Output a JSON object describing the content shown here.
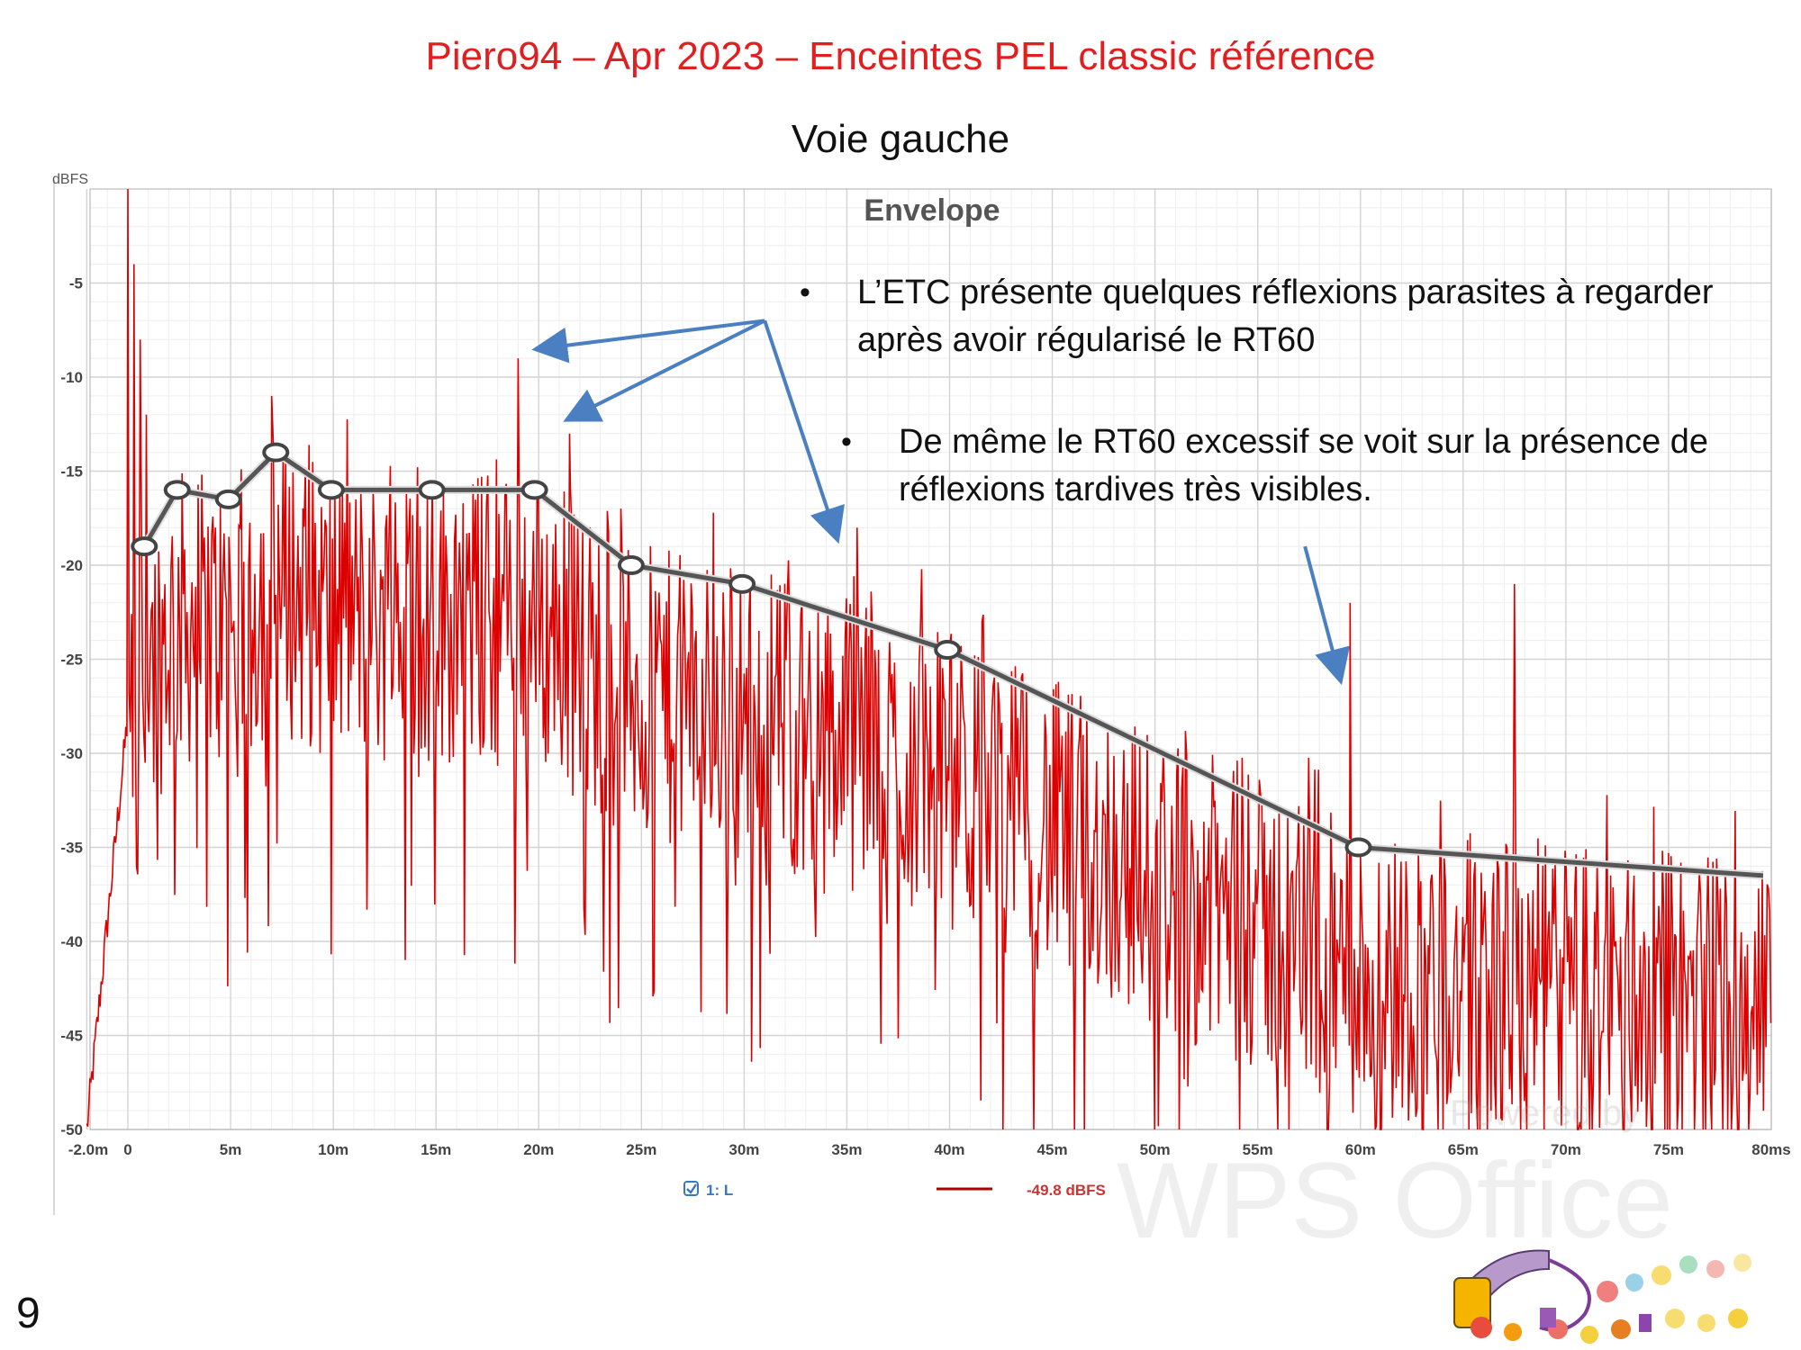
{
  "slide": {
    "title": "Piero94 – Apr 2023 – Enceintes PEL classic référence",
    "subtitle": "Voie gauche",
    "page_number": "9"
  },
  "notes": [
    {
      "bullet": "•",
      "lines": [
        "L’ETC présente quelques réflexions parasites à regarder",
        "après avoir régularisé le RT60"
      ]
    },
    {
      "bullet": "•",
      "lines": [
        "De même le RT60 excessif se voit sur la présence de",
        "réflexions tardives très visibles."
      ]
    }
  ],
  "colors": {
    "title": "#e02020",
    "etc_trace": "#dd0000",
    "envelope_line": "#555555",
    "arrows": "#4a7fc1",
    "grid": "#d4d4d4"
  },
  "chart_data": {
    "type": "line",
    "title": "Envelope",
    "ylabel": "dBFS",
    "xlabel": "",
    "xlim": [
      -2.0,
      80
    ],
    "ylim": [
      -50,
      0
    ],
    "x_ticks": [
      -2,
      0,
      5,
      10,
      15,
      20,
      25,
      30,
      35,
      40,
      45,
      50,
      55,
      60,
      65,
      70,
      75,
      80
    ],
    "x_tick_labels": [
      "-2.0m",
      "0",
      "5m",
      "10m",
      "15m",
      "20m",
      "25m",
      "30m",
      "35m",
      "40m",
      "45m",
      "50m",
      "55m",
      "60m",
      "65m",
      "70m",
      "75m",
      "80ms"
    ],
    "y_ticks": [
      -5,
      -10,
      -15,
      -20,
      -25,
      -30,
      -35,
      -40,
      -45,
      -50
    ],
    "y_tick_labels": [
      "-5",
      "-10",
      "-15",
      "-20",
      "-25",
      "-30",
      "-35",
      "-40",
      "-45",
      "-50"
    ],
    "grid": true,
    "legend": {
      "placement": "bottom-center",
      "checkbox_label": "1: L",
      "value_label": "-49.8 dBFS"
    },
    "series": [
      {
        "name": "1: L",
        "style": "dense-noise-trace",
        "peaks": [
          {
            "x": 0.0,
            "y": 0
          },
          {
            "x": 0.3,
            "y": -4
          },
          {
            "x": 0.6,
            "y": -8
          },
          {
            "x": 0.9,
            "y": -12
          },
          {
            "x": 7.0,
            "y": -11
          },
          {
            "x": 19.0,
            "y": -9
          },
          {
            "x": 21.5,
            "y": -13
          },
          {
            "x": 35.5,
            "y": -18
          },
          {
            "x": 59.5,
            "y": -22
          },
          {
            "x": 67.5,
            "y": -21
          }
        ]
      },
      {
        "name": "",
        "style": "envelope",
        "x": [
          0.8,
          2.4,
          4.9,
          7.2,
          9.9,
          14.8,
          19.8,
          24.5,
          29.9,
          39.9,
          59.9,
          79.6
        ],
        "y": [
          -19,
          -16,
          -16.5,
          -14,
          -16,
          -16,
          -16,
          -20,
          -21,
          -24.5,
          -35,
          -36.5
        ]
      }
    ],
    "annotations": [
      {
        "from_x": 31.0,
        "from_y": -7,
        "to_x": 20.0,
        "to_y": -8.5
      },
      {
        "from_x": 31.0,
        "from_y": -7,
        "to_x": 21.5,
        "to_y": -12.2
      },
      {
        "from_x": 31.0,
        "from_y": -7,
        "to_x": 34.5,
        "to_y": -18.5
      },
      {
        "from_x": 57.3,
        "from_y": -19,
        "to_x": 59.0,
        "to_y": -26
      }
    ],
    "watermark": "Powered by WPS Office"
  }
}
